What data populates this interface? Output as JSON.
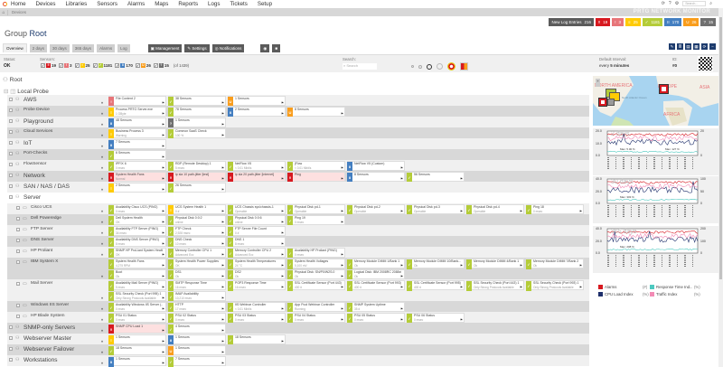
{
  "nav": {
    "items": [
      "Home",
      "Devices",
      "Libraries",
      "Sensors",
      "Alarms",
      "Maps",
      "Reports",
      "Logs",
      "Tickets",
      "Setup"
    ],
    "search_placeholder": "Search..."
  },
  "breadcrumb": "Devices",
  "brand": "PRTG NETWORK MONITOR",
  "badges": [
    {
      "label": "New Log Entries",
      "count": "216",
      "color": "#5b5b5b"
    },
    {
      "label": "‼",
      "count": "19",
      "color": "#d71920"
    },
    {
      "label": "!",
      "count": "3",
      "color": "#e77579"
    },
    {
      "label": "≡",
      "count": "25",
      "color": "#ffcb05"
    },
    {
      "label": "✓",
      "count": "1181",
      "color": "#b4cc38"
    },
    {
      "label": "II",
      "count": "170",
      "color": "#447fc1"
    },
    {
      "label": "U",
      "count": "26",
      "color": "#f99d1c"
    },
    {
      "label": "?",
      "count": "15",
      "color": "#707070"
    }
  ],
  "page_title": {
    "prefix": "Group",
    "name": "Root"
  },
  "tabs": [
    "Overview",
    "2 days",
    "30 days",
    "365 days",
    "Alarms",
    "Log"
  ],
  "buttons": {
    "management": "Management",
    "settings": "Settings",
    "notifications": "Notifications"
  },
  "status": {
    "label": "Status:",
    "value": "OK"
  },
  "sensors": {
    "label": "Sensors:",
    "counts": [
      {
        "n": "19",
        "color": "#d71920",
        "g": "‼"
      },
      {
        "n": "3",
        "color": "#e77579",
        "g": "!"
      },
      {
        "n": "25",
        "color": "#ffcb05",
        "g": "≡"
      },
      {
        "n": "1181",
        "color": "#b4cc38",
        "g": "✓"
      },
      {
        "n": "170",
        "color": "#447fc1",
        "g": "II"
      },
      {
        "n": "26",
        "color": "#f99d1c",
        "g": "U"
      },
      {
        "n": "15",
        "color": "#707070",
        "g": "?"
      }
    ],
    "total": "(of 1439)"
  },
  "search": {
    "label": "Search:",
    "placeholder": "Search"
  },
  "interval": {
    "label": "Default Interval:",
    "value_prefix": "every ",
    "value_bold": "5 minutes"
  },
  "id": {
    "label": "ID:",
    "value": "#0"
  },
  "tree": {
    "root": "Root",
    "probe": "Local Probe",
    "groups": [
      {
        "name": "AWS",
        "level": 0,
        "tiles": [
          {
            "s": "warnp",
            "n": "File Content 2"
          },
          {
            "s": "up",
            "n": "38 Sensors"
          },
          {
            "s": "unusual",
            "n": "1 Sensors"
          }
        ]
      },
      {
        "name": "Probe Device",
        "level": 0,
        "small": true,
        "tiles": [
          {
            "s": "warn",
            "n": "Process PRTG Server.exe",
            "v": "1 GByte"
          },
          {
            "s": "up",
            "n": "78 Sensors"
          },
          {
            "s": "paused",
            "n": "2 Sensors"
          },
          {
            "s": "unusual",
            "n": "8 Sensors"
          }
        ]
      },
      {
        "name": "Playground",
        "level": 0,
        "tiles": [
          {
            "s": "paused",
            "n": "48 Sensors"
          },
          {
            "s": "unknown",
            "n": "1 Sensors"
          }
        ]
      },
      {
        "name": "Cloud Services",
        "level": 0,
        "small": true,
        "tiles": [
          {
            "s": "warn",
            "n": "Business Process 3",
            "v": "Warning"
          },
          {
            "s": "up",
            "n": "Common SaaS Check",
            "v": "100 %"
          }
        ]
      },
      {
        "name": "IoT",
        "level": 0,
        "tiles": [
          {
            "s": "paused",
            "n": "7 Sensors"
          }
        ]
      },
      {
        "name": "Port-Checks",
        "level": 0,
        "small": true,
        "tiles": [
          {
            "s": "up",
            "n": "6 Sensors"
          }
        ]
      },
      {
        "name": "FlowSensor",
        "level": 0,
        "small": true,
        "tiles": [
          {
            "s": "up",
            "n": "IPFIX 6",
            "v": "0 msec"
          },
          {
            "s": "up",
            "n": "RDP (Remote Desktop) 1",
            "v": "5 msec"
          },
          {
            "s": "up",
            "n": "NetFlow V5",
            "v": "< 0.01 Mbit/s"
          },
          {
            "s": "up",
            "n": "jFlow",
            "v": "< 0.01 Mbit/s"
          },
          {
            "s": "paused",
            "n": "NetFlow V5 (Custom)"
          }
        ]
      },
      {
        "name": "Network",
        "level": 0,
        "tiles": [
          {
            "s": "down",
            "n": "System Health Fans",
            "v": "Normal"
          },
          {
            "s": "down",
            "n": "ip sla 10 path-jitter [test]"
          },
          {
            "s": "down",
            "n": "ip sla 20 path-jitter [internet]"
          },
          {
            "s": "down",
            "n": "Ping"
          },
          {
            "s": "paused",
            "n": "8 Sensors"
          },
          {
            "s": "up",
            "n": "56 Sensors"
          }
        ]
      },
      {
        "name": "SAN / NAS / DAS",
        "level": 0,
        "tiles": [
          {
            "s": "warn",
            "n": "2 Sensors"
          },
          {
            "s": "up",
            "n": "26 Sensors"
          }
        ]
      },
      {
        "name": "Server",
        "level": 0,
        "tiles": []
      },
      {
        "name": "Cisco UCS",
        "level": 1,
        "tiles": [
          {
            "s": "up",
            "n": "Availability Cisco UCS (PING)",
            "v": "0 msec"
          },
          {
            "s": "warn",
            "n": "UCS System Health 1",
            "v": "0 #"
          },
          {
            "s": "up",
            "n": "UCS Chassis sys/chassis-1",
            "v": "Operable"
          },
          {
            "s": "up",
            "n": "Physical Disk pd-1",
            "v": "Operable"
          },
          {
            "s": "up",
            "n": "Physical Disk pd-2",
            "v": "Operable"
          },
          {
            "s": "up",
            "n": "Physical Disk pd-3",
            "v": "Operable"
          },
          {
            "s": "up",
            "n": "Physical Disk pd-4",
            "v": "Operable"
          },
          {
            "s": "up",
            "n": "Ping 18",
            "v": "0 msec"
          }
        ]
      },
      {
        "name": "Dell Poweredge",
        "level": 1,
        "tiles": [
          {
            "s": "up",
            "n": "Dell System Health",
            "v": "OK"
          },
          {
            "s": "up",
            "n": "Physical Disk 0:0:2",
            "v": "online"
          },
          {
            "s": "up",
            "n": "Physical Disk 0:0:6",
            "v": "online"
          },
          {
            "s": "up",
            "n": "Ping 19",
            "v": "0 msec"
          }
        ]
      },
      {
        "name": "FTP Server",
        "level": 1,
        "tiles": [
          {
            "s": "up",
            "n": "Availability FTP Server (PING)",
            "v": "34 msec"
          },
          {
            "s": "up",
            "n": "FTP Check",
            "v": "2,928 msec"
          },
          {
            "s": "up",
            "n": "FTP Server File Count",
            "v": "0 #"
          }
        ]
      },
      {
        "name": "DNS Server",
        "level": 1,
        "tiles": [
          {
            "s": "up",
            "n": "Availability DNS Server (PING)",
            "v": "8 msec"
          },
          {
            "s": "up",
            "n": "DNS Check",
            "v": "10 msec"
          },
          {
            "s": "up",
            "n": "DNS 1",
            "v": "8 msec"
          }
        ]
      },
      {
        "name": "HP Proliant",
        "level": 1,
        "tiles": [
          {
            "s": "up",
            "n": "SNMP HP ProLiant System Health",
            "v": "OK"
          },
          {
            "s": "up",
            "n": "Memory Controller CPU 1",
            "v": "Advanced Ecc"
          },
          {
            "s": "up",
            "n": "Memory Controller CPU 2",
            "v": "Advanced Ecc"
          },
          {
            "s": "up",
            "n": "Availability HP Proliant (PING)",
            "v": "0 msec"
          }
        ]
      },
      {
        "name": "IBM System X",
        "level": 1,
        "tiles": [
          {
            "s": "up",
            "n": "System Health Fans",
            "v": "4,275 RPM"
          },
          {
            "s": "up",
            "n": "System Health Power Supplies",
            "v": "OK"
          },
          {
            "s": "up",
            "n": "System Health Temperatures",
            "v": "24 °C"
          },
          {
            "s": "up",
            "n": "System Health Voltages",
            "v": "5,100 mV"
          },
          {
            "s": "up",
            "n": "Memory Module DIMM 1/Bank 1",
            "v": "Ok"
          },
          {
            "s": "up",
            "n": "Memory Module DIMM 10/Bank...",
            "v": "Ok"
          },
          {
            "s": "up",
            "n": "Memory Module DIMM 4/Bank 1",
            "v": "Ok"
          },
          {
            "s": "up",
            "n": "Memory Module DIMM 7/Bank 2",
            "v": "Ok"
          },
          {
            "s": "up",
            "n": "Boot",
            "v": "Ok"
          },
          {
            "s": "up",
            "n": "DS1",
            "v": "Ok"
          },
          {
            "s": "up",
            "n": "DS2",
            "v": "Ok"
          },
          {
            "s": "up",
            "n": "Physical Disk: SN/P0/W2S.0",
            "v": "Ok"
          },
          {
            "s": "up",
            "n": "Logical Disk: IBM 2008RC 2088x00...",
            "v": "Ok"
          }
        ]
      },
      {
        "name": "Mail Server",
        "level": 1,
        "tiles": [
          {
            "s": "up",
            "n": "Availability Mail Server (PING)",
            "v": "5 msec"
          },
          {
            "s": "up",
            "n": "SMTP Response Time",
            "v": "16 msec"
          },
          {
            "s": "up",
            "n": "POP3 Response Time",
            "v": "16 msec"
          },
          {
            "s": "up",
            "n": "SSL Certificate Sensor (Port 443)...",
            "v": "400 #"
          },
          {
            "s": "up",
            "n": "SSL Certificate Sensor (Port 993)...",
            "v": "400 #"
          },
          {
            "s": "up",
            "n": "SSL Certificate Sensor (Port 995)...",
            "v": "400 #"
          },
          {
            "s": "up",
            "n": "SSL Security Check (Port 443) 1",
            "v": "Only Strong Protocols Available"
          },
          {
            "s": "up",
            "n": "SSL Security Check (Port 993) 1",
            "v": "Only Strong Protocols Available"
          },
          {
            "s": "up",
            "n": "SSL Security Check (Port 995) 1",
            "v": "Only Strong Protocols Available"
          },
          {
            "s": "up",
            "n": "IMAP Availability",
            "v": "10,210 msec"
          }
        ]
      },
      {
        "name": "Windows IIS Server",
        "level": 1,
        "tiles": [
          {
            "s": "up",
            "n": "Availability Windows IIS Server (...",
            "v": "0 msec"
          },
          {
            "s": "up",
            "n": "HTTP",
            "v": "17 msec"
          },
          {
            "s": "up",
            "n": "IIS Webinar Controller",
            "v": "< 0.01 Mbit/s"
          },
          {
            "s": "up",
            "n": "App Pool Webinar Controller",
            "v": "Running"
          },
          {
            "s": "up",
            "n": "SNMP System Uptime",
            "v": "35 d"
          }
        ]
      },
      {
        "name": "HP Blade System",
        "level": 1,
        "tiles": [
          {
            "s": "up",
            "n": "PSU 01 Status",
            "v": "0 msec"
          },
          {
            "s": "up",
            "n": "PSU 02 Status",
            "v": "0 msec"
          },
          {
            "s": "up",
            "n": "PSU 03 Status",
            "v": "0 msec"
          },
          {
            "s": "up",
            "n": "PSU 04 Status",
            "v": "0 msec"
          },
          {
            "s": "up",
            "n": "PSU 05 Status",
            "v": "0 msec"
          },
          {
            "s": "up",
            "n": "PSU 06 Status",
            "v": "0 msec"
          }
        ]
      },
      {
        "name": "SNMP-only Servers",
        "level": 0,
        "tiles": [
          {
            "s": "down",
            "n": "SNMP CPU Load 1"
          },
          {
            "s": "up",
            "n": "4 Sensors"
          }
        ]
      },
      {
        "name": "Webserver Master",
        "level": 0,
        "tiles": [
          {
            "s": "warn",
            "n": "1 Sensors"
          },
          {
            "s": "paused",
            "n": "1 Sensors"
          },
          {
            "s": "up",
            "n": "18 Sensors"
          }
        ]
      },
      {
        "name": "Webserver Failover",
        "level": 0,
        "tiles": [
          {
            "s": "up",
            "n": "18 Sensors"
          },
          {
            "s": "unusual",
            "n": "1 Sensors"
          }
        ]
      },
      {
        "name": "Workstations",
        "level": 0,
        "tiles": [
          {
            "s": "paused",
            "n": "1 Sensors"
          },
          {
            "s": "up",
            "n": "7 Sensors"
          }
        ]
      }
    ]
  },
  "status_colors": {
    "down": "#d71920",
    "warnp": "#e77579",
    "warn": "#ffcb05",
    "up": "#b4cc38",
    "paused": "#447fc1",
    "unusual": "#f99d1c",
    "unknown": "#707070"
  },
  "status_glyphs": {
    "down": "‼",
    "warnp": "!",
    "warn": "≡",
    "up": "✓",
    "paused": "II",
    "unusual": "U",
    "unknown": "?"
  },
  "map": {
    "labels": [
      "NORTH AMERICA",
      "EUROPE",
      "ASIA",
      "AFRICA",
      "North Atlantic Ocean"
    ]
  },
  "charts": [
    {
      "title": "2 days",
      "yleft": [
        "0.0",
        "10.0",
        "20.0"
      ],
      "yright": [
        "0",
        "20"
      ],
      "notes": [
        "Max: 5.00 %",
        "Max: 127 %"
      ]
    },
    {
      "title": "30 days",
      "yleft": [
        "0.0",
        "20.0",
        "40.0"
      ],
      "yright": [
        "0",
        "50",
        "100"
      ],
      "notes": [
        "Max: 303 %"
      ]
    },
    {
      "title": "365 days",
      "yleft": [
        "0.0",
        "20.0",
        "40.0"
      ],
      "yright": [
        "0",
        "100",
        "200"
      ],
      "notes": [
        "Max: 208 %"
      ]
    }
  ],
  "legend": [
    {
      "name": "Alarms",
      "unit": "(#)",
      "color": "#d71920"
    },
    {
      "name": "Response Time Ind...",
      "unit": "(%)",
      "color": "#4ec9c0"
    },
    {
      "name": "CPU Load Index",
      "unit": "(%)",
      "color": "#1e2f6b"
    },
    {
      "name": "Traffic Index",
      "unit": "(%)",
      "color": "#f38bb5"
    }
  ]
}
